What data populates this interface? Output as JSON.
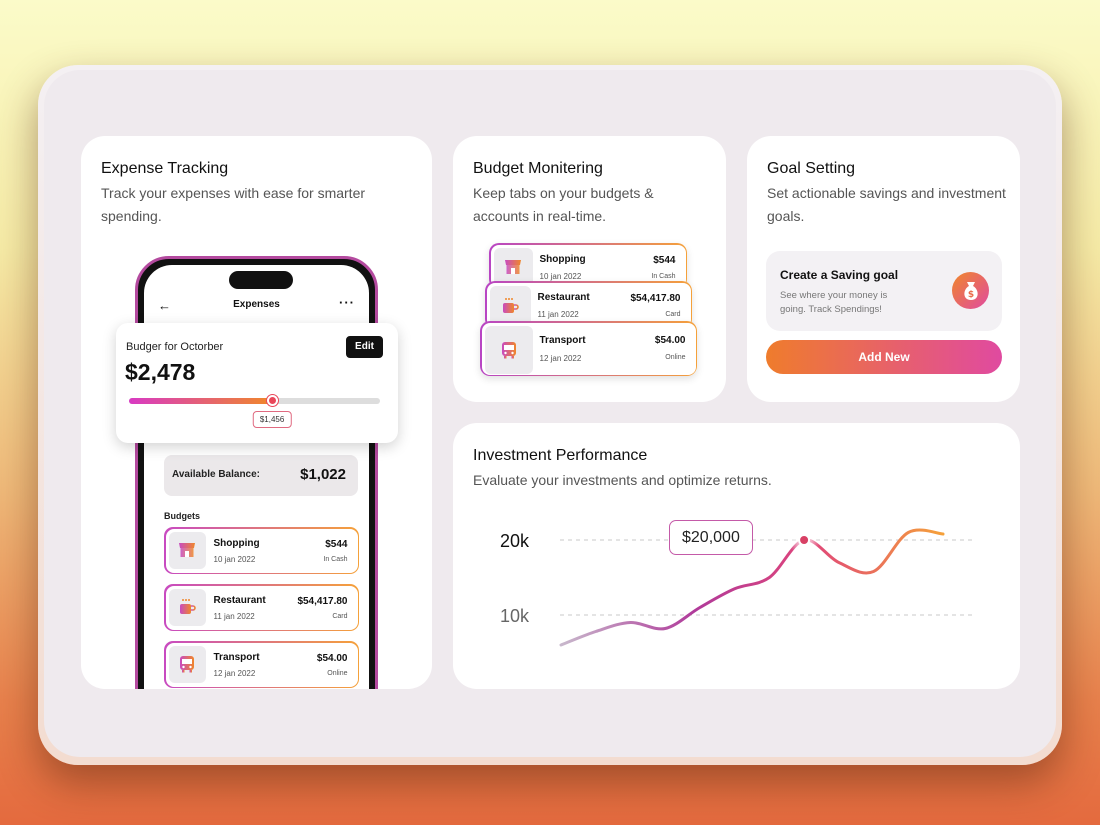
{
  "expense": {
    "title": "Expense Tracking",
    "subtitle": "Track your expenses with ease for smarter spending.",
    "phone": {
      "screen_title": "Expenses",
      "back_glyph": "←",
      "more_glyph": "···",
      "budget_label": "Budger for Octorber",
      "budget_amount": "$2,478",
      "edit_label": "Edit",
      "progress_fraction": 0.57,
      "progress_tag": "$1,456",
      "available_label": "Available Balance:",
      "available_value": "$1,022",
      "budgets_heading": "Budgets",
      "budgets": [
        {
          "name": "Shopping",
          "date": "10 jan 2022",
          "amount": "$544",
          "method": "In Cash",
          "icon": "shop-icon"
        },
        {
          "name": "Restaurant",
          "date": "11 jan 2022",
          "amount": "$54,417.80",
          "method": "Card",
          "icon": "coffee-icon"
        },
        {
          "name": "Transport",
          "date": "12 jan 2022",
          "amount": "$54.00",
          "method": "Online",
          "icon": "bus-icon"
        }
      ]
    }
  },
  "budget": {
    "title": "Budget Monitering",
    "subtitle": "Keep tabs on your budgets & accounts in real-time.",
    "items": [
      {
        "name": "Shopping",
        "date": "10 jan 2022",
        "amount": "$544",
        "method": "In Cash",
        "icon": "shop-icon"
      },
      {
        "name": "Restaurant",
        "date": "11 jan 2022",
        "amount": "$54,417.80",
        "method": "Card",
        "icon": "coffee-icon"
      },
      {
        "name": "Transport",
        "date": "12 jan 2022",
        "amount": "$54.00",
        "method": "Online",
        "icon": "bus-icon"
      }
    ]
  },
  "goal": {
    "title": "Goal Setting",
    "subtitle": "Set actionable savings and investment goals.",
    "box_title": "Create a Saving goal",
    "box_desc": "See where your money is going. Track Spendings!",
    "icon": "money-bag-icon",
    "button_label": "Add New"
  },
  "investment": {
    "title": "Investment Performance",
    "subtitle": "Evaluate your investments and optimize returns.",
    "tooltip": "$20,000"
  },
  "chart_data": {
    "type": "line",
    "title": "",
    "xlabel": "",
    "ylabel": "",
    "ytick_labels": [
      "20k",
      "10k"
    ],
    "ytick_values": [
      20000,
      10000
    ],
    "ylim": [
      0,
      25000
    ],
    "grid": true,
    "x": [
      0,
      1,
      2,
      3,
      4,
      5,
      6,
      7,
      8,
      9,
      10,
      11
    ],
    "series": [
      {
        "values": [
          6000,
          7800,
          9000,
          8200,
          11000,
          13500,
          15000,
          20000,
          17000,
          15800,
          21000,
          20800
        ]
      }
    ],
    "highlight": {
      "index": 7,
      "value": 20000
    },
    "colors": [
      "#c8b8cc",
      "#b03a9a",
      "#e0457a",
      "#f5a13a"
    ]
  }
}
